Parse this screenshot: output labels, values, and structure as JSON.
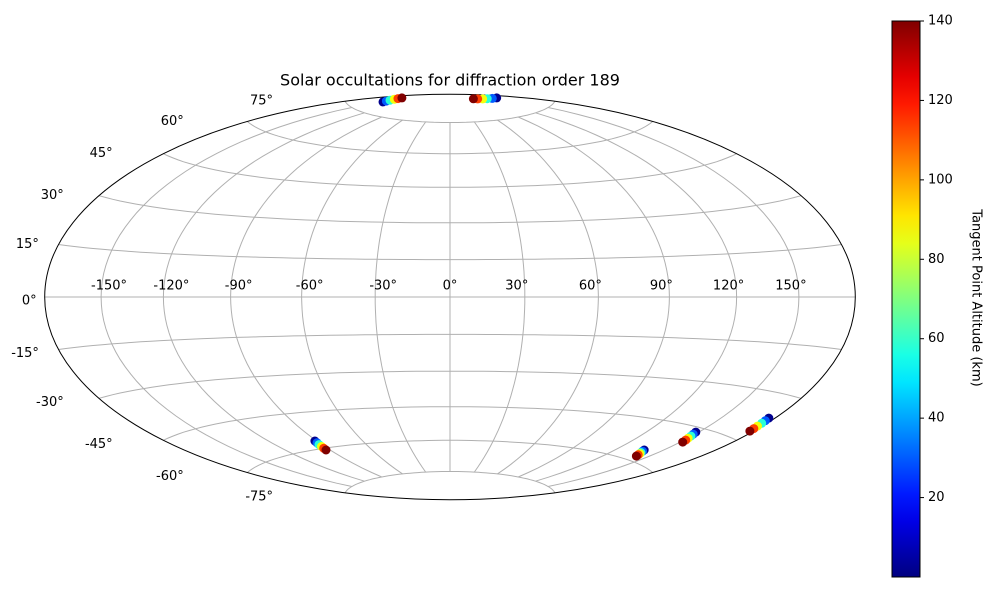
{
  "chart_data": {
    "type": "scatter",
    "projection": "hammer",
    "title": "Solar occultations for diffraction order 189",
    "x": [
      -149.4,
      -151.5,
      -153.6,
      -155.8,
      -157.9,
      -160.0,
      159.4,
      149.7,
      140.0,
      130.3,
      120.6,
      110.9,
      -91.2,
      -91.5,
      -91.9,
      -92.2,
      -92.6,
      -92.9,
      138.2,
      138.9,
      139.6,
      140.4,
      141.1,
      141.8,
      148.3,
      148.9,
      149.5,
      150.2,
      150.8,
      151.4,
      176.5,
      176.7,
      177.0,
      177.2,
      177.5,
      177.7
    ],
    "y": [
      79.9,
      80.5,
      81.1,
      81.8,
      82.4,
      83.0,
      83.2,
      83.7,
      84.3,
      84.8,
      85.4,
      85.9,
      -56.7,
      -57.5,
      -58.3,
      -59.2,
      -60.0,
      -60.8,
      -55.8,
      -56.3,
      -56.8,
      -57.2,
      -57.7,
      -58.2,
      -46.6,
      -47.4,
      -48.1,
      -48.9,
      -49.6,
      -50.4,
      -37.2,
      -38.1,
      -39.0,
      -40.0,
      -40.9,
      -41.8
    ],
    "c": [
      2,
      30,
      58,
      86,
      114,
      140,
      2,
      30,
      58,
      86,
      114,
      140,
      2,
      30,
      58,
      86,
      114,
      140,
      2,
      30,
      58,
      86,
      114,
      140,
      2,
      30,
      58,
      86,
      114,
      140,
      2,
      30,
      58,
      86,
      114,
      140
    ],
    "colormap": "jet",
    "clim": [
      0,
      140
    ],
    "cticks": [
      20,
      40,
      60,
      80,
      100,
      120,
      140
    ],
    "colorbar_label": "Tangent Point Altitude (km)",
    "xlim": [
      -180,
      180
    ],
    "ylim": [
      -90,
      90
    ],
    "xticks": [
      {
        "value": -150,
        "label": "-150°"
      },
      {
        "value": -120,
        "label": "-120°"
      },
      {
        "value": -90,
        "label": "-90°"
      },
      {
        "value": -60,
        "label": "-60°"
      },
      {
        "value": -30,
        "label": "-30°"
      },
      {
        "value": 0,
        "label": "0°"
      },
      {
        "value": 30,
        "label": "30°"
      },
      {
        "value": 60,
        "label": "60°"
      },
      {
        "value": 90,
        "label": "90°"
      },
      {
        "value": 120,
        "label": "120°"
      },
      {
        "value": 150,
        "label": "150°"
      }
    ],
    "yticks": [
      {
        "value": -75,
        "label": "-75°"
      },
      {
        "value": -60,
        "label": "-60°"
      },
      {
        "value": -45,
        "label": "-45°"
      },
      {
        "value": -30,
        "label": "-30°"
      },
      {
        "value": -15,
        "label": "-15°"
      },
      {
        "value": 0,
        "label": "0°"
      },
      {
        "value": 15,
        "label": "15°"
      },
      {
        "value": 30,
        "label": "30°"
      },
      {
        "value": 45,
        "label": "45°"
      },
      {
        "value": 60,
        "label": "60°"
      },
      {
        "value": 75,
        "label": "75°"
      }
    ],
    "grid": true
  }
}
